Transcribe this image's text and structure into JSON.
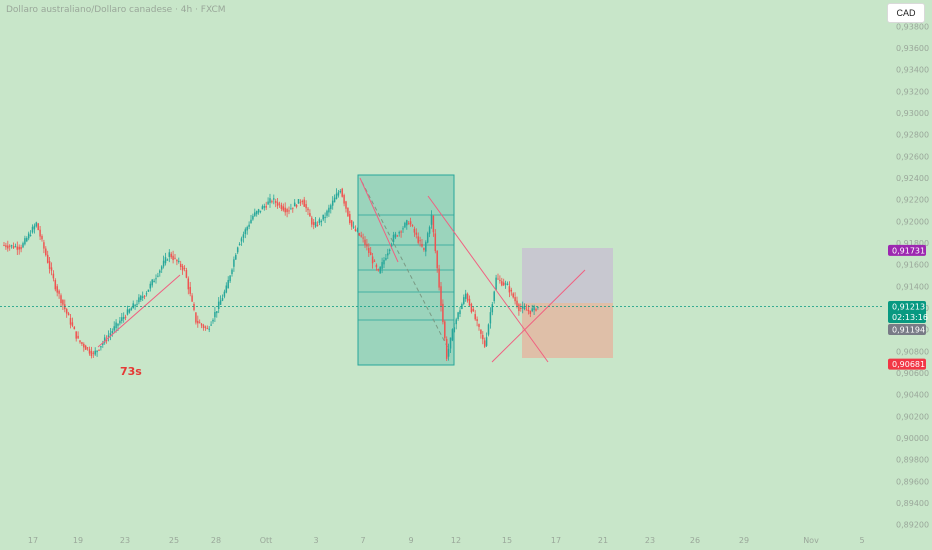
{
  "header": {
    "title": "Dollaro australiano/Dollaro canadese · 4h · FXCM",
    "currency_button": "CAD"
  },
  "colors": {
    "background": "#c8e6c9",
    "up": "#26a69a",
    "down": "#ef5350",
    "trend_line": "#f06080",
    "current_price": "#089981",
    "reference_price": "#787b86",
    "target_price": "#9c27b0",
    "stop_price": "#f23645"
  },
  "chart_data": {
    "type": "candlestick",
    "symbol": "AUDCAD",
    "timeframe": "4h",
    "ylim": [
      0.8915,
      0.9395
    ],
    "y_ticks": [
      "0,93800",
      "0,93600",
      "0,93400",
      "0,93200",
      "0,93000",
      "0,92800",
      "0,92600",
      "0,92400",
      "0,92200",
      "0,92000",
      "0,91800",
      "0,91600",
      "0,91400",
      "0,91200",
      "0,91000",
      "0,90800",
      "0,90600",
      "0,90400",
      "0,90200",
      "0,90000",
      "0,89800",
      "0,89600",
      "0,89400",
      "0,89200"
    ],
    "x_ticks": [
      "17",
      "19",
      "23",
      "25",
      "28",
      "Ott",
      "3",
      "7",
      "9",
      "12",
      "15",
      "17",
      "21",
      "23",
      "26",
      "29",
      "Nov",
      "5"
    ],
    "waypoints": [
      [
        0,
        0.9178
      ],
      [
        10,
        0.9176
      ],
      [
        18,
        0.9198
      ],
      [
        28,
        0.914
      ],
      [
        40,
        0.909
      ],
      [
        48,
        0.9077
      ],
      [
        62,
        0.9108
      ],
      [
        76,
        0.9135
      ],
      [
        88,
        0.917
      ],
      [
        96,
        0.9155
      ],
      [
        102,
        0.9108
      ],
      [
        108,
        0.91
      ],
      [
        118,
        0.9138
      ],
      [
        124,
        0.9178
      ],
      [
        132,
        0.9205
      ],
      [
        142,
        0.922
      ],
      [
        150,
        0.921
      ],
      [
        158,
        0.922
      ],
      [
        164,
        0.9195
      ],
      [
        170,
        0.9205
      ],
      [
        178,
        0.923
      ],
      [
        184,
        0.9195
      ],
      [
        190,
        0.9183
      ],
      [
        198,
        0.9152
      ],
      [
        206,
        0.9185
      ],
      [
        214,
        0.92
      ],
      [
        222,
        0.9172
      ],
      [
        226,
        0.9205
      ],
      [
        230,
        0.914
      ],
      [
        234,
        0.9075
      ],
      [
        238,
        0.9105
      ],
      [
        244,
        0.9133
      ],
      [
        250,
        0.9105
      ],
      [
        254,
        0.9085
      ],
      [
        260,
        0.9147
      ],
      [
        266,
        0.914
      ],
      [
        272,
        0.912
      ],
      [
        278,
        0.9117
      ],
      [
        282,
        0.9121
      ]
    ],
    "current_price": "0,91213",
    "countdown": "02:13:16",
    "reference_price": "0,91194",
    "target_price": "0,91731",
    "stop_price": "0,90681",
    "annotation": "73s"
  }
}
